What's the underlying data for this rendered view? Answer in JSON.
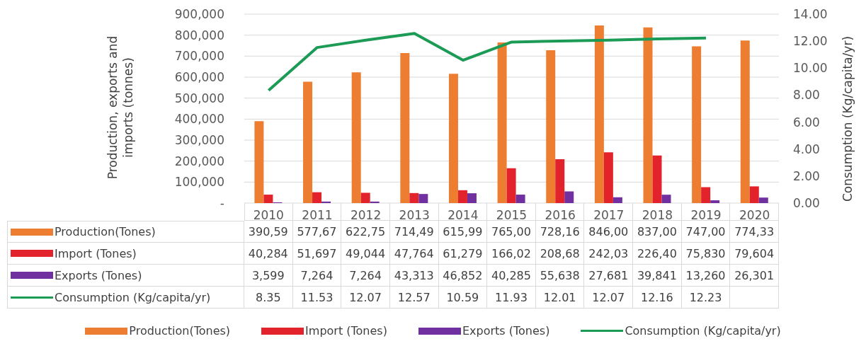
{
  "chart_data": {
    "type": "bar",
    "ylabel": "Production, exports and imports (tonnes)",
    "y2label": "Consumption (Kg/capita/yr)",
    "categories": [
      "2010",
      "2011",
      "2012",
      "2013",
      "2014",
      "2015",
      "2016",
      "2017",
      "2018",
      "2019",
      "2020"
    ],
    "series": [
      {
        "name": "Production(Tones)",
        "color": "#ed7d31",
        "values": [
          390590,
          577670,
          622750,
          714490,
          615990,
          765000,
          728160,
          846000,
          837000,
          747000,
          774330
        ],
        "value_labels": [
          null,
          null,
          null,
          null,
          null,
          null,
          null,
          null,
          null,
          null,
          null
        ]
      },
      {
        "name": "Import (Tones)",
        "color": "#e3232b",
        "values": [
          40284,
          51697,
          49044,
          47764,
          61279,
          166020,
          208680,
          242030,
          226400,
          75830,
          79604
        ],
        "value_labels": [
          "40,284",
          "51,697",
          "49,044",
          "47,764",
          "61,279",
          null,
          null,
          null,
          null,
          "75,830",
          "79,604"
        ]
      },
      {
        "name": "Exports (Tones)",
        "color": "#7030a0",
        "values": [
          3599,
          7264,
          7264,
          43313,
          46852,
          40285,
          55638,
          27681,
          39841,
          13260,
          26301
        ],
        "value_labels": [
          "3,599",
          "7,264",
          "7,264",
          "43,313",
          "46,852",
          "40,285",
          "55,638",
          "27,681",
          "39,841",
          "13,260",
          "26,301"
        ]
      },
      {
        "name": "Consumption (Kg/capita/yr)",
        "type": "line",
        "axis": "y2",
        "color": "#1c9b56",
        "values": [
          8.35,
          11.53,
          12.07,
          12.57,
          10.59,
          11.93,
          12.01,
          12.07,
          12.16,
          12.23,
          null
        ],
        "value_labels": [
          "8.35",
          "11.53",
          "12.07",
          "12.57",
          "10.59",
          "11.93",
          "12.01",
          "12.07",
          "12.16",
          "12.23",
          null
        ]
      }
    ],
    "annotations": [
      "390,59",
      "577,67",
      "622,75",
      "714,49",
      "615,99",
      "765,00",
      "728,16",
      "846,00",
      "837,00",
      "747,00",
      "774,33",
      "166,02",
      "208,68",
      "242,03",
      "226,40"
    ],
    "ylim": [
      0,
      900000
    ],
    "yticks": [
      {
        "value": 0,
        "label": "-"
      },
      {
        "value": 100000,
        "label": "100,000"
      },
      {
        "value": 200000,
        "label": "200,000"
      },
      {
        "value": 300000,
        "label": "300,000"
      },
      {
        "value": 400000,
        "label": "400,000"
      },
      {
        "value": 500000,
        "label": "500,000"
      },
      {
        "value": 600000,
        "label": "600,000"
      },
      {
        "value": 700000,
        "label": "700,000"
      },
      {
        "value": 800000,
        "label": "800,000"
      },
      {
        "value": 900000,
        "label": "900,000"
      }
    ],
    "y2lim": [
      0,
      14
    ],
    "y2ticks": [
      {
        "value": 0,
        "label": "0.00"
      },
      {
        "value": 2,
        "label": "2.00"
      },
      {
        "value": 4,
        "label": "4.00"
      },
      {
        "value": 6,
        "label": "6.00"
      },
      {
        "value": 8,
        "label": "8.00"
      },
      {
        "value": 10,
        "label": "10.00"
      },
      {
        "value": 12,
        "label": "12.00"
      },
      {
        "value": 14,
        "label": "14.00"
      }
    ],
    "grid": "y",
    "legend": "bottom",
    "marker": "none"
  }
}
